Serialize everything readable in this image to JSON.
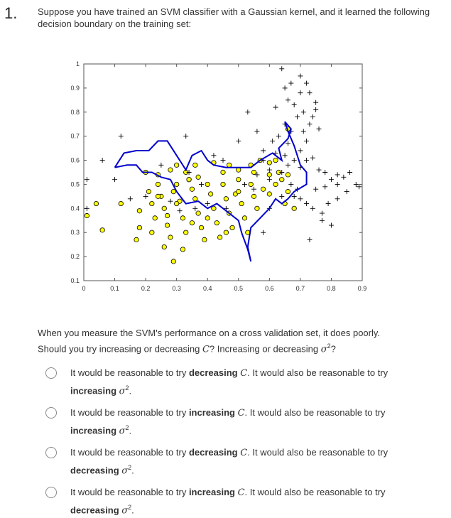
{
  "question": {
    "number": "1.",
    "text": "Suppose you have trained an SVM classifier with a Gaussian kernel, and it learned the following decision boundary on the training set:",
    "prompt_line1": "When you measure the SVM's performance on a cross validation set, it does poorly.",
    "prompt_line2_a": "Should you try increasing or decreasing ",
    "prompt_C": "C",
    "prompt_line2_b": "? Increasing or decreasing ",
    "prompt_sigma": "σ",
    "prompt_sup": "2",
    "prompt_line2_c": "?"
  },
  "options": [
    {
      "pre": "It would be reasonable to try ",
      "b1": "decreasing",
      "C": "C",
      "mid": ". It would also be reasonable to try ",
      "b2": "increasing",
      "sigma": "σ",
      "sup": "2",
      "end": "."
    },
    {
      "pre": "It would be reasonable to try ",
      "b1": "increasing",
      "C": "C",
      "mid": ". It would also be reasonable to try ",
      "b2": "increasing",
      "sigma": "σ",
      "sup": "2",
      "end": "."
    },
    {
      "pre": "It would be reasonable to try ",
      "b1": "decreasing",
      "C": "C",
      "mid": ". It would also be reasonable to try ",
      "b2": "decreasing",
      "sigma": "σ",
      "sup": "2",
      "end": "."
    },
    {
      "pre": "It would be reasonable to try ",
      "b1": "increasing",
      "C": "C",
      "mid": ". It would also be reasonable to try ",
      "b2": "decreasing",
      "sigma": "σ",
      "sup": "2",
      "end": "."
    }
  ],
  "chart_data": {
    "type": "scatter",
    "xlim": [
      0,
      0.9
    ],
    "ylim": [
      0.1,
      1
    ],
    "xticks": [
      "0",
      "0.1",
      "0.2",
      "0.3",
      "0.4",
      "0.5",
      "0.6",
      "0.7",
      "0.8",
      "0.9"
    ],
    "yticks": [
      "0.1",
      "0.2",
      "0.3",
      "0.4",
      "0.5",
      "0.6",
      "0.7",
      "0.8",
      "0.9",
      "1"
    ],
    "colors": {
      "positive": "#000000",
      "negative_fill": "#ffff00",
      "negative_stroke": "#000000",
      "boundary": "#0000cc"
    },
    "positive_points": [
      [
        0.06,
        0.6
      ],
      [
        0.12,
        0.7
      ],
      [
        0.1,
        0.52
      ],
      [
        0.01,
        0.52
      ],
      [
        0.01,
        0.4
      ],
      [
        0.15,
        0.44
      ],
      [
        0.2,
        0.45
      ],
      [
        0.25,
        0.58
      ],
      [
        0.33,
        0.7
      ],
      [
        0.34,
        0.55
      ],
      [
        0.38,
        0.5
      ],
      [
        0.42,
        0.62
      ],
      [
        0.45,
        0.6
      ],
      [
        0.5,
        0.68
      ],
      [
        0.53,
        0.8
      ],
      [
        0.56,
        0.72
      ],
      [
        0.58,
        0.6
      ],
      [
        0.6,
        0.52
      ],
      [
        0.6,
        0.4
      ],
      [
        0.58,
        0.3
      ],
      [
        0.64,
        0.98
      ],
      [
        0.66,
        0.85
      ],
      [
        0.62,
        0.82
      ],
      [
        0.65,
        0.75
      ],
      [
        0.67,
        0.72
      ],
      [
        0.68,
        0.83
      ],
      [
        0.7,
        0.88
      ],
      [
        0.71,
        0.8
      ],
      [
        0.73,
        0.88
      ],
      [
        0.75,
        0.84
      ],
      [
        0.74,
        0.78
      ],
      [
        0.76,
        0.73
      ],
      [
        0.71,
        0.72
      ],
      [
        0.72,
        0.68
      ],
      [
        0.7,
        0.64
      ],
      [
        0.68,
        0.6
      ],
      [
        0.66,
        0.58
      ],
      [
        0.64,
        0.55
      ],
      [
        0.67,
        0.5
      ],
      [
        0.69,
        0.48
      ],
      [
        0.7,
        0.44
      ],
      [
        0.72,
        0.42
      ],
      [
        0.74,
        0.4
      ],
      [
        0.76,
        0.56
      ],
      [
        0.78,
        0.55
      ],
      [
        0.8,
        0.52
      ],
      [
        0.82,
        0.54
      ],
      [
        0.84,
        0.53
      ],
      [
        0.86,
        0.55
      ],
      [
        0.88,
        0.5
      ],
      [
        0.85,
        0.47
      ],
      [
        0.82,
        0.44
      ],
      [
        0.79,
        0.42
      ],
      [
        0.77,
        0.38
      ],
      [
        0.8,
        0.33
      ],
      [
        0.77,
        0.35
      ],
      [
        0.73,
        0.27
      ],
      [
        0.72,
        0.92
      ],
      [
        0.72,
        0.6
      ],
      [
        0.65,
        0.62
      ],
      [
        0.62,
        0.63
      ],
      [
        0.58,
        0.64
      ],
      [
        0.4,
        0.42
      ],
      [
        0.36,
        0.4
      ],
      [
        0.28,
        0.43
      ],
      [
        0.31,
        0.39
      ],
      [
        0.46,
        0.4
      ],
      [
        0.52,
        0.5
      ],
      [
        0.55,
        0.48
      ],
      [
        0.64,
        0.45
      ],
      [
        0.68,
        0.45
      ],
      [
        0.82,
        0.5
      ],
      [
        0.78,
        0.49
      ],
      [
        0.89,
        0.49
      ],
      [
        0.75,
        0.48
      ],
      [
        0.7,
        0.57
      ],
      [
        0.74,
        0.61
      ],
      [
        0.61,
        0.68
      ],
      [
        0.63,
        0.7
      ],
      [
        0.66,
        0.67
      ],
      [
        0.69,
        0.78
      ],
      [
        0.73,
        0.75
      ],
      [
        0.75,
        0.81
      ],
      [
        0.65,
        0.9
      ],
      [
        0.67,
        0.92
      ],
      [
        0.7,
        0.95
      ],
      [
        0.6,
        0.56
      ],
      [
        0.56,
        0.54
      ]
    ],
    "negative_points": [
      [
        0.04,
        0.42
      ],
      [
        0.06,
        0.31
      ],
      [
        0.01,
        0.37
      ],
      [
        0.12,
        0.42
      ],
      [
        0.18,
        0.39
      ],
      [
        0.18,
        0.32
      ],
      [
        0.17,
        0.27
      ],
      [
        0.2,
        0.55
      ],
      [
        0.21,
        0.47
      ],
      [
        0.22,
        0.42
      ],
      [
        0.23,
        0.36
      ],
      [
        0.24,
        0.5
      ],
      [
        0.25,
        0.45
      ],
      [
        0.26,
        0.4
      ],
      [
        0.27,
        0.33
      ],
      [
        0.28,
        0.28
      ],
      [
        0.29,
        0.47
      ],
      [
        0.3,
        0.5
      ],
      [
        0.31,
        0.43
      ],
      [
        0.32,
        0.36
      ],
      [
        0.33,
        0.3
      ],
      [
        0.34,
        0.52
      ],
      [
        0.35,
        0.48
      ],
      [
        0.36,
        0.44
      ],
      [
        0.37,
        0.38
      ],
      [
        0.38,
        0.32
      ],
      [
        0.39,
        0.27
      ],
      [
        0.4,
        0.5
      ],
      [
        0.41,
        0.46
      ],
      [
        0.42,
        0.4
      ],
      [
        0.43,
        0.34
      ],
      [
        0.44,
        0.28
      ],
      [
        0.45,
        0.5
      ],
      [
        0.46,
        0.44
      ],
      [
        0.47,
        0.38
      ],
      [
        0.48,
        0.32
      ],
      [
        0.49,
        0.46
      ],
      [
        0.5,
        0.52
      ],
      [
        0.51,
        0.42
      ],
      [
        0.52,
        0.36
      ],
      [
        0.53,
        0.3
      ],
      [
        0.54,
        0.5
      ],
      [
        0.55,
        0.45
      ],
      [
        0.56,
        0.4
      ],
      [
        0.58,
        0.48
      ],
      [
        0.6,
        0.46
      ],
      [
        0.62,
        0.5
      ],
      [
        0.64,
        0.52
      ],
      [
        0.66,
        0.54
      ],
      [
        0.66,
        0.47
      ],
      [
        0.65,
        0.42
      ],
      [
        0.68,
        0.4
      ],
      [
        0.62,
        0.6
      ],
      [
        0.6,
        0.59
      ],
      [
        0.57,
        0.6
      ],
      [
        0.54,
        0.58
      ],
      [
        0.5,
        0.56
      ],
      [
        0.47,
        0.58
      ],
      [
        0.42,
        0.59
      ],
      [
        0.36,
        0.58
      ],
      [
        0.34,
        0.52
      ],
      [
        0.3,
        0.58
      ],
      [
        0.26,
        0.24
      ],
      [
        0.29,
        0.18
      ],
      [
        0.32,
        0.23
      ],
      [
        0.24,
        0.54
      ],
      [
        0.28,
        0.56
      ],
      [
        0.33,
        0.55
      ],
      [
        0.37,
        0.53
      ],
      [
        0.45,
        0.55
      ],
      [
        0.5,
        0.47
      ],
      [
        0.55,
        0.55
      ],
      [
        0.6,
        0.54
      ],
      [
        0.63,
        0.55
      ],
      [
        0.66,
        0.73
      ],
      [
        0.24,
        0.45
      ],
      [
        0.3,
        0.42
      ],
      [
        0.35,
        0.34
      ],
      [
        0.4,
        0.36
      ],
      [
        0.46,
        0.3
      ],
      [
        0.22,
        0.3
      ],
      [
        0.27,
        0.37
      ]
    ],
    "boundary": [
      [
        0.1,
        0.57
      ],
      [
        0.13,
        0.63
      ],
      [
        0.17,
        0.64
      ],
      [
        0.21,
        0.64
      ],
      [
        0.24,
        0.68
      ],
      [
        0.27,
        0.68
      ],
      [
        0.3,
        0.62
      ],
      [
        0.33,
        0.56
      ],
      [
        0.35,
        0.62
      ],
      [
        0.38,
        0.64
      ],
      [
        0.4,
        0.6
      ],
      [
        0.42,
        0.58
      ],
      [
        0.46,
        0.57
      ],
      [
        0.5,
        0.57
      ],
      [
        0.54,
        0.57
      ],
      [
        0.57,
        0.6
      ],
      [
        0.61,
        0.63
      ],
      [
        0.64,
        0.6
      ],
      [
        0.63,
        0.65
      ],
      [
        0.66,
        0.69
      ],
      [
        0.67,
        0.73
      ],
      [
        0.65,
        0.76
      ],
      [
        0.66,
        0.72
      ],
      [
        0.68,
        0.66
      ],
      [
        0.7,
        0.58
      ],
      [
        0.72,
        0.55
      ],
      [
        0.72,
        0.5
      ],
      [
        0.68,
        0.47
      ],
      [
        0.66,
        0.44
      ],
      [
        0.64,
        0.42
      ],
      [
        0.62,
        0.44
      ],
      [
        0.6,
        0.4
      ],
      [
        0.57,
        0.36
      ],
      [
        0.54,
        0.32
      ],
      [
        0.53,
        0.24
      ],
      [
        0.54,
        0.18
      ],
      [
        0.53,
        0.23
      ],
      [
        0.51,
        0.3
      ],
      [
        0.5,
        0.35
      ],
      [
        0.47,
        0.38
      ],
      [
        0.43,
        0.42
      ],
      [
        0.4,
        0.4
      ],
      [
        0.37,
        0.43
      ],
      [
        0.33,
        0.42
      ],
      [
        0.3,
        0.47
      ],
      [
        0.28,
        0.52
      ],
      [
        0.25,
        0.53
      ],
      [
        0.22,
        0.55
      ],
      [
        0.19,
        0.55
      ],
      [
        0.17,
        0.58
      ],
      [
        0.14,
        0.58
      ],
      [
        0.1,
        0.57
      ]
    ]
  }
}
